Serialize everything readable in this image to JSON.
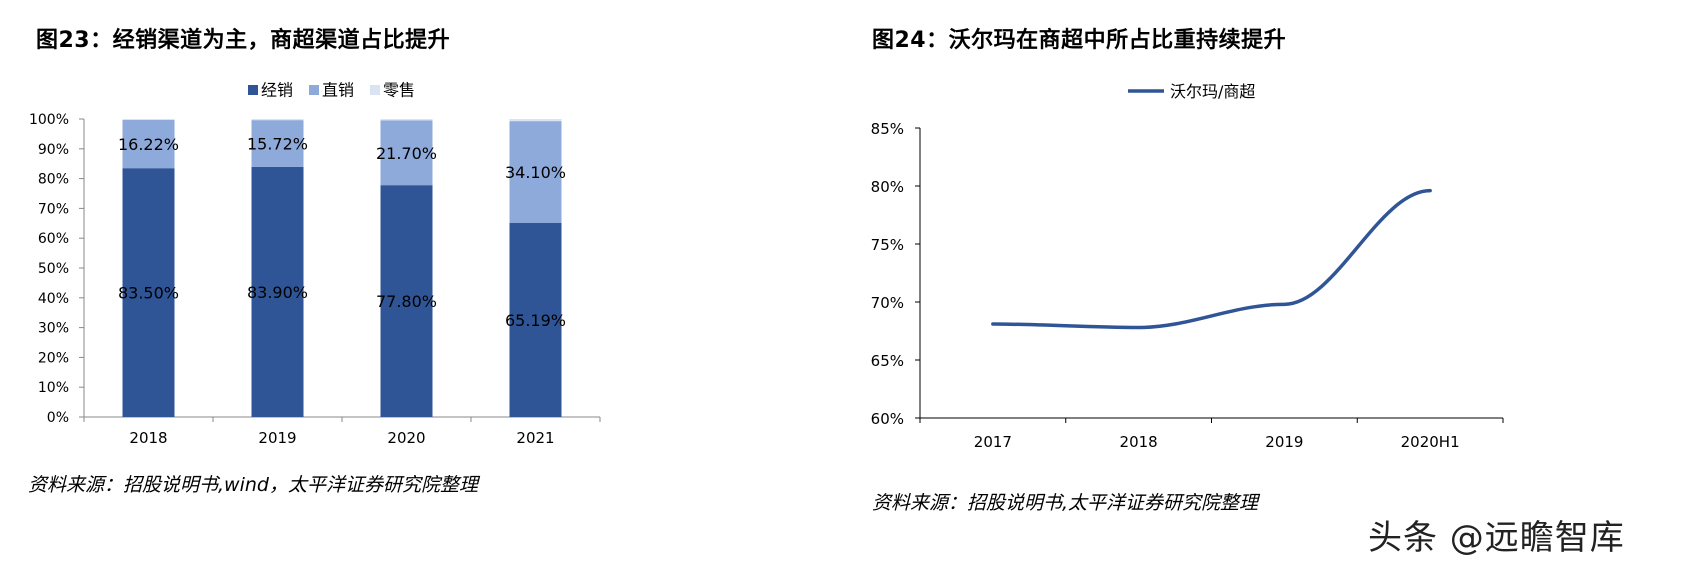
{
  "left": {
    "title": "图23：经销渠道为主，商超渠道占比提升",
    "source": "资料来源：招股说明书,wind，太平洋证券研究院整理"
  },
  "right": {
    "title": "图24：沃尔玛在商超中所占比重持续提升",
    "source": "资料来源：招股说明书,太平洋证券研究院整理"
  },
  "watermark": "头条 @远瞻智库",
  "chart_data": [
    {
      "type": "bar",
      "stacked": true,
      "categories": [
        "2018",
        "2019",
        "2020",
        "2021"
      ],
      "series": [
        {
          "name": "经销",
          "values": [
            83.5,
            83.9,
            77.8,
            65.19
          ],
          "labels": [
            "83.50%",
            "83.90%",
            "77.80%",
            "65.19%"
          ],
          "color": "#2f5597"
        },
        {
          "name": "直销",
          "values": [
            16.22,
            15.72,
            21.7,
            34.1
          ],
          "labels": [
            "16.22%",
            "15.72%",
            "21.70%",
            "34.10%"
          ],
          "color": "#8eaadb"
        },
        {
          "name": "零售",
          "values": [
            0.28,
            0.38,
            0.5,
            0.71
          ],
          "labels": [],
          "color": "#dae3f3"
        }
      ],
      "ylim": [
        0,
        100
      ],
      "yticks": [
        "0%",
        "10%",
        "20%",
        "30%",
        "40%",
        "50%",
        "60%",
        "70%",
        "80%",
        "90%",
        "100%"
      ],
      "legend_position": "top"
    },
    {
      "type": "line",
      "categories": [
        "2017",
        "2018",
        "2019",
        "2020H1"
      ],
      "series": [
        {
          "name": "沃尔玛/商超",
          "values": [
            68.1,
            67.8,
            69.8,
            79.6
          ],
          "color": "#2f5597"
        }
      ],
      "ylim": [
        60,
        85
      ],
      "yticks": [
        "60%",
        "65%",
        "70%",
        "75%",
        "80%",
        "85%"
      ],
      "legend_position": "top"
    }
  ]
}
